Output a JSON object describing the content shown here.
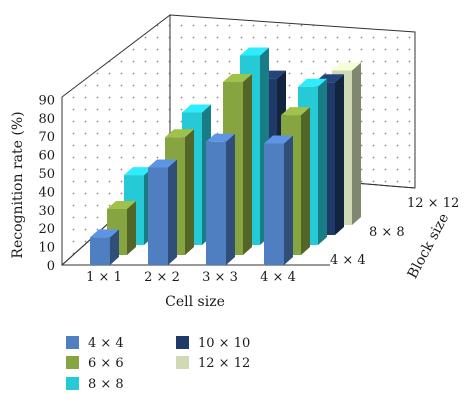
{
  "chart_data": {
    "type": "bar3d",
    "categories": [
      "1 × 1",
      "2 × 2",
      "3 × 3",
      "4 × 4"
    ],
    "depth_categories": [
      "4 × 4",
      "8 × 8",
      "12 × 12"
    ],
    "series": [
      {
        "name": "4 × 4",
        "color": "#4f7ec1",
        "values": [
          15,
          53,
          67,
          66
        ]
      },
      {
        "name": "6 × 6",
        "color": "#86a43f",
        "values": [
          25,
          64,
          94,
          76
        ]
      },
      {
        "name": "8 × 8",
        "color": "#26c9d6",
        "values": [
          38,
          72,
          103,
          86
        ]
      },
      {
        "name": "10 × 10",
        "color": "#1f3a68",
        "values": [
          null,
          null,
          85,
          83
        ]
      },
      {
        "name": "12 × 12",
        "color": "#cfd9b6",
        "values": [
          null,
          null,
          null,
          84
        ]
      }
    ],
    "ylabel": "Recognition rate (%)",
    "xlabel": "Cell size",
    "zlabel": "Block size",
    "yticks": [
      0,
      10,
      20,
      30,
      40,
      50,
      60,
      70,
      80,
      90
    ],
    "ylim": [
      0,
      90
    ],
    "grid": "dotted"
  }
}
